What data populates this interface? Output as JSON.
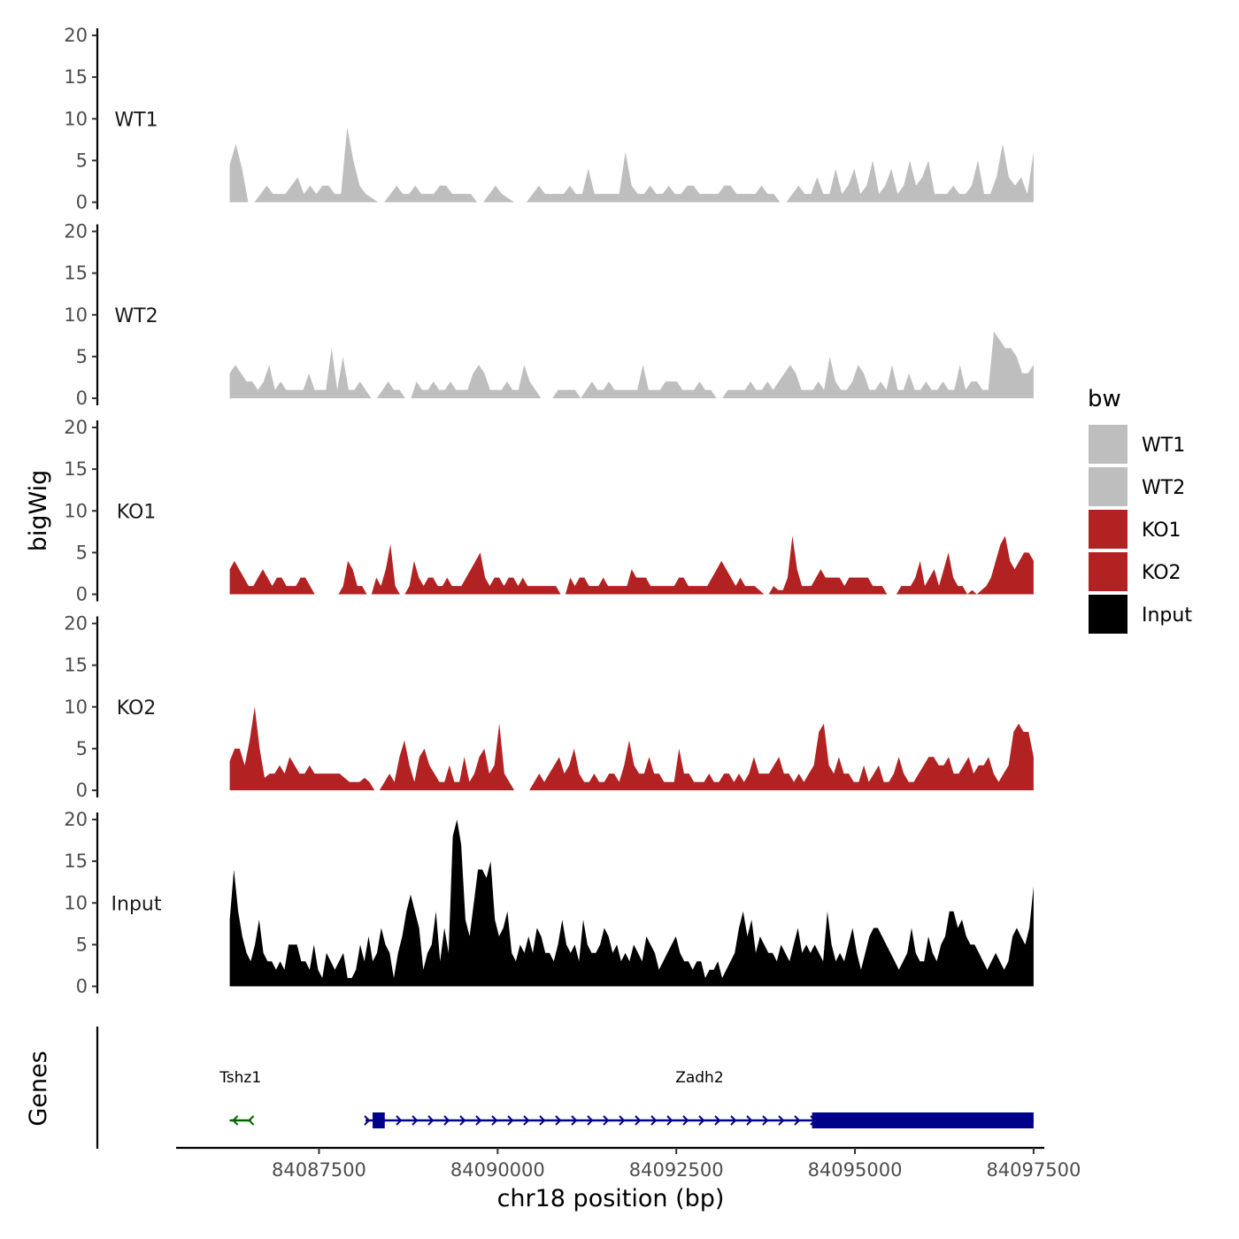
{
  "chart_data": {
    "type": "area",
    "title": "",
    "xlabel": "chr18 position (bp)",
    "ylabel": "bigWig",
    "genes_label": "Genes",
    "xlim": [
      84085500,
      84097650
    ],
    "xticks": [
      84087500,
      84090000,
      84092500,
      84095000,
      84097500
    ],
    "xtick_labels": [
      "84087500",
      "84090000",
      "84092500",
      "84095000",
      "84097500"
    ],
    "ylim": [
      0,
      20
    ],
    "yticks": [
      0,
      5,
      10,
      15,
      20
    ],
    "ytick_labels": [
      "0",
      "5",
      "10",
      "15",
      "20"
    ],
    "x_start": 84086250,
    "x_end": 84097500,
    "legend": {
      "title": "bw",
      "entries": [
        {
          "name": "WT1",
          "color": "#bebebe"
        },
        {
          "name": "WT2",
          "color": "#bebebe"
        },
        {
          "name": "KO1",
          "color": "#b22222"
        },
        {
          "name": "KO2",
          "color": "#b22222"
        },
        {
          "name": "Input",
          "color": "#000000"
        }
      ]
    },
    "series": [
      {
        "name": "WT1",
        "color": "#bebebe",
        "values": [
          4.5,
          7,
          4,
          0,
          0,
          1,
          2,
          1,
          1,
          1,
          2,
          3,
          1,
          2,
          1,
          2,
          2,
          1,
          1,
          9,
          5,
          2,
          1,
          0.5,
          0,
          0,
          1,
          2,
          1,
          1,
          2,
          1,
          1,
          1,
          2,
          2,
          1,
          1,
          1,
          1,
          0,
          0,
          1,
          2,
          1,
          0.5,
          0,
          0,
          0,
          1,
          2,
          1,
          1,
          1,
          1,
          2,
          1,
          1,
          4,
          1,
          1,
          1,
          1,
          1,
          6,
          2,
          1,
          1,
          2,
          1,
          1,
          2,
          1,
          1,
          2,
          2,
          1,
          1,
          1,
          1,
          2,
          2,
          1,
          1,
          1,
          1,
          2,
          1,
          1,
          0,
          0,
          1,
          2,
          1,
          1,
          3,
          1,
          1,
          4,
          1,
          2,
          4,
          1,
          2,
          5,
          1,
          2,
          4,
          1,
          2,
          5,
          2,
          3,
          5,
          1,
          1,
          1,
          2,
          1,
          1,
          2,
          5,
          1,
          1,
          3,
          7,
          3,
          2,
          3,
          1,
          6
        ]
      },
      {
        "name": "WT2",
        "color": "#bebebe",
        "values": [
          3,
          4,
          3,
          2,
          2,
          1,
          2,
          4,
          1,
          2,
          1,
          1,
          1,
          1,
          3,
          1,
          1,
          1,
          6,
          1,
          5,
          1,
          1,
          2,
          1,
          0,
          0,
          1,
          2,
          1,
          1,
          0,
          0,
          2,
          1,
          1,
          2,
          1,
          1,
          2,
          1,
          1,
          1,
          3,
          4,
          3,
          1,
          1,
          1,
          2,
          1,
          1,
          4,
          2,
          1,
          0,
          0,
          0,
          1,
          1,
          1,
          1,
          0,
          1,
          2,
          1,
          1,
          2,
          1,
          1,
          1,
          1,
          1,
          4,
          1,
          1,
          1,
          2,
          2,
          2,
          1,
          1,
          1,
          2,
          1,
          1,
          0,
          0,
          1,
          1,
          1,
          1,
          2,
          1,
          1,
          2,
          1,
          2,
          3,
          4,
          3,
          1,
          1,
          1,
          2,
          1,
          5,
          2,
          1,
          1,
          2,
          4,
          3,
          1,
          1,
          2,
          1,
          4,
          1,
          1,
          3,
          1,
          1,
          2,
          1,
          1,
          2,
          1,
          1,
          4,
          1,
          2,
          2,
          1,
          1,
          8,
          7,
          6,
          6,
          5,
          3,
          3,
          4
        ]
      },
      {
        "name": "KO1",
        "color": "#b22222",
        "values": [
          3,
          4,
          3,
          2,
          1,
          1,
          2,
          3,
          2,
          1,
          2,
          2,
          1,
          1,
          1,
          2,
          2,
          1,
          0,
          0,
          0,
          0,
          0,
          0,
          1,
          4,
          3,
          1,
          1,
          0,
          0,
          2,
          1,
          3,
          6,
          1,
          0,
          0,
          1,
          4,
          2,
          1,
          2,
          2,
          1,
          1,
          2,
          1,
          1,
          1,
          2,
          3,
          4,
          5,
          2,
          1,
          2,
          2,
          1,
          2,
          2,
          1,
          2,
          1,
          1,
          1,
          1,
          1,
          1,
          1,
          0,
          0,
          2,
          1,
          2,
          2,
          1,
          1,
          1,
          2,
          1,
          1,
          1,
          1,
          1,
          3,
          2,
          2,
          2,
          1,
          1,
          1,
          1,
          1,
          1,
          2,
          2,
          1,
          1,
          1,
          1,
          1,
          2,
          3,
          4,
          3,
          2,
          1,
          2,
          1,
          1,
          1,
          0.5,
          0,
          0,
          1,
          0.5,
          0.5,
          2,
          7,
          3,
          1,
          1,
          1,
          2,
          3,
          2,
          2,
          2,
          2,
          1,
          2,
          2,
          2,
          2,
          2,
          1,
          1,
          1,
          0,
          0,
          0,
          1,
          1,
          1,
          2,
          4,
          1,
          2,
          3,
          1,
          3,
          5,
          2,
          1,
          1,
          0,
          0.5,
          0,
          0.5,
          1,
          2,
          4,
          6,
          7,
          4,
          3,
          4,
          5,
          5,
          4
        ]
      },
      {
        "name": "KO2",
        "color": "#b22222",
        "values": [
          3.5,
          5,
          5,
          3,
          6,
          10,
          5,
          1.5,
          2,
          2,
          3,
          2,
          4,
          3,
          2,
          2,
          3,
          2,
          2,
          2,
          2,
          2,
          2,
          1.5,
          1,
          1,
          1,
          1.5,
          1,
          0,
          0,
          1,
          2,
          1,
          4,
          6,
          3,
          1,
          4,
          5,
          3,
          2,
          1,
          1,
          3,
          1,
          1,
          4,
          1,
          2,
          4,
          5,
          2,
          3,
          8,
          2,
          1,
          0,
          0,
          0,
          0,
          1,
          2,
          1,
          2,
          3,
          4,
          2,
          3,
          5,
          2,
          1,
          1,
          2,
          1,
          1,
          2,
          2,
          1,
          3,
          6,
          3,
          2,
          2,
          4,
          2,
          2,
          1,
          1,
          1,
          5,
          2,
          2,
          1,
          1,
          1,
          2,
          1,
          1,
          2,
          2,
          1,
          2,
          1,
          2,
          4,
          2,
          2,
          2,
          3,
          4,
          2,
          2,
          1,
          2,
          1,
          2,
          3,
          7,
          8,
          3,
          2,
          4,
          2,
          2,
          1,
          1,
          3,
          1,
          2,
          3,
          1,
          1,
          2,
          4,
          2,
          1,
          1,
          2,
          3,
          4,
          4,
          3,
          3,
          4,
          2,
          2,
          3,
          4,
          2,
          3,
          3,
          4,
          2,
          1,
          2,
          3,
          7,
          8,
          7,
          7,
          4
        ]
      },
      {
        "name": "Input",
        "color": "#000000",
        "values": [
          8,
          14,
          9,
          6,
          4,
          3,
          5,
          8,
          4,
          3,
          3,
          2,
          3,
          2,
          5,
          5,
          5,
          3,
          3,
          2,
          5,
          2,
          1,
          4,
          3,
          2,
          3,
          4,
          1,
          1,
          2,
          5,
          3,
          6,
          3,
          4,
          7,
          5,
          4,
          1,
          4,
          6,
          9,
          11,
          9,
          7,
          2,
          4,
          5,
          9,
          3,
          7,
          4,
          18,
          20,
          17,
          8,
          6,
          10,
          14,
          14,
          13,
          15,
          8,
          6,
          7,
          9,
          4,
          3,
          5,
          4,
          6,
          4,
          7,
          6,
          4,
          4,
          3,
          5,
          8,
          5,
          4,
          5,
          3,
          8,
          5,
          4,
          4,
          5,
          7,
          6,
          4,
          5,
          3,
          4,
          3,
          5,
          4,
          3,
          6,
          5,
          4,
          2,
          3,
          4,
          5,
          6,
          4,
          3,
          3,
          2,
          3,
          3,
          1,
          2,
          2,
          3,
          1,
          2,
          3,
          4,
          7,
          9,
          6,
          8,
          4,
          6,
          5,
          4,
          4,
          3,
          5,
          4,
          3,
          5,
          7,
          4,
          5,
          4,
          5,
          4,
          3,
          9,
          5,
          3,
          4,
          3,
          5,
          7,
          4,
          2,
          4,
          6,
          7,
          7,
          6,
          5,
          4,
          3,
          2,
          3,
          4,
          7,
          4,
          3,
          3,
          6,
          4,
          3,
          5,
          6,
          9,
          9,
          7,
          8,
          6,
          5,
          5,
          4,
          3,
          2,
          3,
          4,
          3,
          2,
          3,
          6,
          7,
          6,
          5,
          7,
          12
        ]
      }
    ],
    "genes": [
      {
        "name": "Tshz1",
        "strand": "-",
        "color": "#006400",
        "start": 84086250,
        "end": 84086550,
        "exons": []
      },
      {
        "name": "Zadh2",
        "strand": "+",
        "color": "#00008b",
        "start": 84088150,
        "end": 84097500,
        "exons": [
          {
            "start": 84088250,
            "end": 84088420,
            "height": "thick"
          },
          {
            "start": 84094400,
            "end": 84097500,
            "height": "thick"
          }
        ]
      }
    ]
  }
}
